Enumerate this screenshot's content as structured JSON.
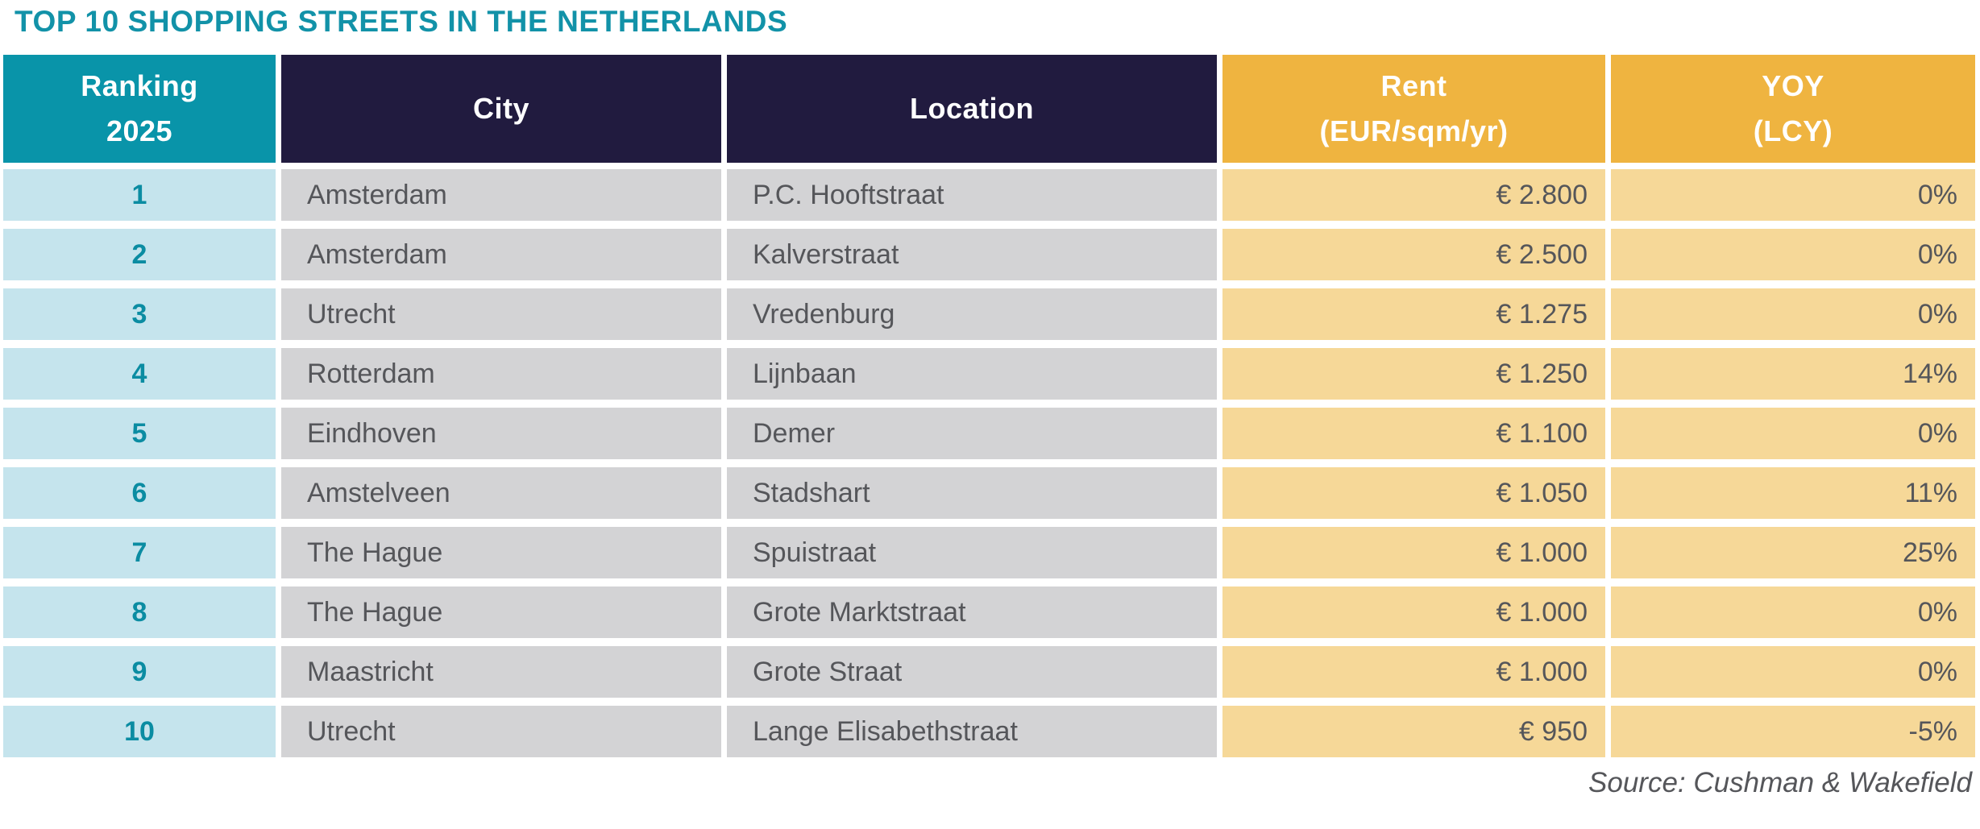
{
  "title": "TOP 10 SHOPPING STREETS IN THE NETHERLANDS",
  "source_note": "Source: Cushman & Wakefield",
  "colors": {
    "title_teal": "#1292A8",
    "header_teal": "#0994A9",
    "header_navy": "#211B3F",
    "header_amber": "#EFB440",
    "row_light_blue": "#C5E4ED",
    "row_light_gray": "#D3D3D5",
    "row_light_amber": "#F6D898",
    "body_text": "#55565A",
    "rank_text": "#0B8CA2"
  },
  "table": {
    "headers": {
      "ranking_l1": "Ranking",
      "ranking_l2": "2025",
      "city": "City",
      "location": "Location",
      "rent_l1": "Rent",
      "rent_l2": "(EUR/sqm/yr)",
      "yoy_l1": "YOY",
      "yoy_l2": "(LCY)"
    },
    "rows": [
      {
        "rank": "1",
        "city": "Amsterdam",
        "location": "P.C. Hooftstraat",
        "rent": "€ 2.800",
        "yoy": "0%"
      },
      {
        "rank": "2",
        "city": "Amsterdam",
        "location": "Kalverstraat",
        "rent": "€ 2.500",
        "yoy": "0%"
      },
      {
        "rank": "3",
        "city": "Utrecht",
        "location": "Vredenburg",
        "rent": "€ 1.275",
        "yoy": "0%"
      },
      {
        "rank": "4",
        "city": "Rotterdam",
        "location": "Lijnbaan",
        "rent": "€ 1.250",
        "yoy": "14%"
      },
      {
        "rank": "5",
        "city": "Eindhoven",
        "location": "Demer",
        "rent": "€ 1.100",
        "yoy": "0%"
      },
      {
        "rank": "6",
        "city": "Amstelveen",
        "location": "Stadshart",
        "rent": "€ 1.050",
        "yoy": "11%"
      },
      {
        "rank": "7",
        "city": "The Hague",
        "location": "Spuistraat",
        "rent": "€ 1.000",
        "yoy": "25%"
      },
      {
        "rank": "8",
        "city": "The Hague",
        "location": "Grote Marktstraat",
        "rent": "€ 1.000",
        "yoy": "0%"
      },
      {
        "rank": "9",
        "city": "Maastricht",
        "location": "Grote Straat",
        "rent": "€ 1.000",
        "yoy": "0%"
      },
      {
        "rank": "10",
        "city": "Utrecht",
        "location": "Lange Elisabethstraat",
        "rent": "€ 950",
        "yoy": "-5%"
      }
    ]
  },
  "chart_data": {
    "type": "table",
    "title": "TOP 10 SHOPPING STREETS IN THE NETHERLANDS",
    "columns": [
      "Ranking 2025",
      "City",
      "Location",
      "Rent (EUR/sqm/yr)",
      "YOY (LCY)"
    ],
    "rows": [
      [
        1,
        "Amsterdam",
        "P.C. Hooftstraat",
        2800,
        "0%"
      ],
      [
        2,
        "Amsterdam",
        "Kalverstraat",
        2500,
        "0%"
      ],
      [
        3,
        "Utrecht",
        "Vredenburg",
        1275,
        "0%"
      ],
      [
        4,
        "Rotterdam",
        "Lijnbaan",
        1250,
        "14%"
      ],
      [
        5,
        "Eindhoven",
        "Demer",
        1100,
        "0%"
      ],
      [
        6,
        "Amstelveen",
        "Stadshart",
        1050,
        "11%"
      ],
      [
        7,
        "The Hague",
        "Spuistraat",
        1000,
        "25%"
      ],
      [
        8,
        "The Hague",
        "Grote Marktstraat",
        1000,
        "0%"
      ],
      [
        9,
        "Maastricht",
        "Grote Straat",
        1000,
        "0%"
      ],
      [
        10,
        "Utrecht",
        "Lange Elisabethstraat",
        950,
        "-5%"
      ]
    ],
    "source": "Cushman & Wakefield"
  }
}
